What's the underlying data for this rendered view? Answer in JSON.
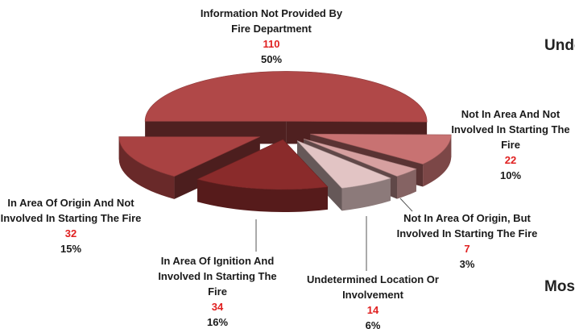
{
  "chart_data": {
    "type": "pie",
    "categories": [
      "Information Not Provided By Fire Department",
      "Not In Area And Not Involved In Starting The Fire",
      "Not In Area Of Origin, But Involved In Starting The Fire",
      "Undetermined Location Or Involvement",
      "In Area Of Ignition And Involved In Starting The Fire",
      "In Area Of Origin And Not Involved In Starting The Fire"
    ],
    "values": [
      110,
      22,
      7,
      14,
      34,
      32
    ],
    "percent_labels": [
      "50%",
      "10%",
      "3%",
      "6%",
      "16%",
      "15%"
    ],
    "colors": [
      "#b04848",
      "#c87272",
      "#d6a0a0",
      "#e2c4c4",
      "#8a2b2b",
      "#a94242"
    ],
    "side_texts": [
      "Unde",
      "Most"
    ]
  }
}
